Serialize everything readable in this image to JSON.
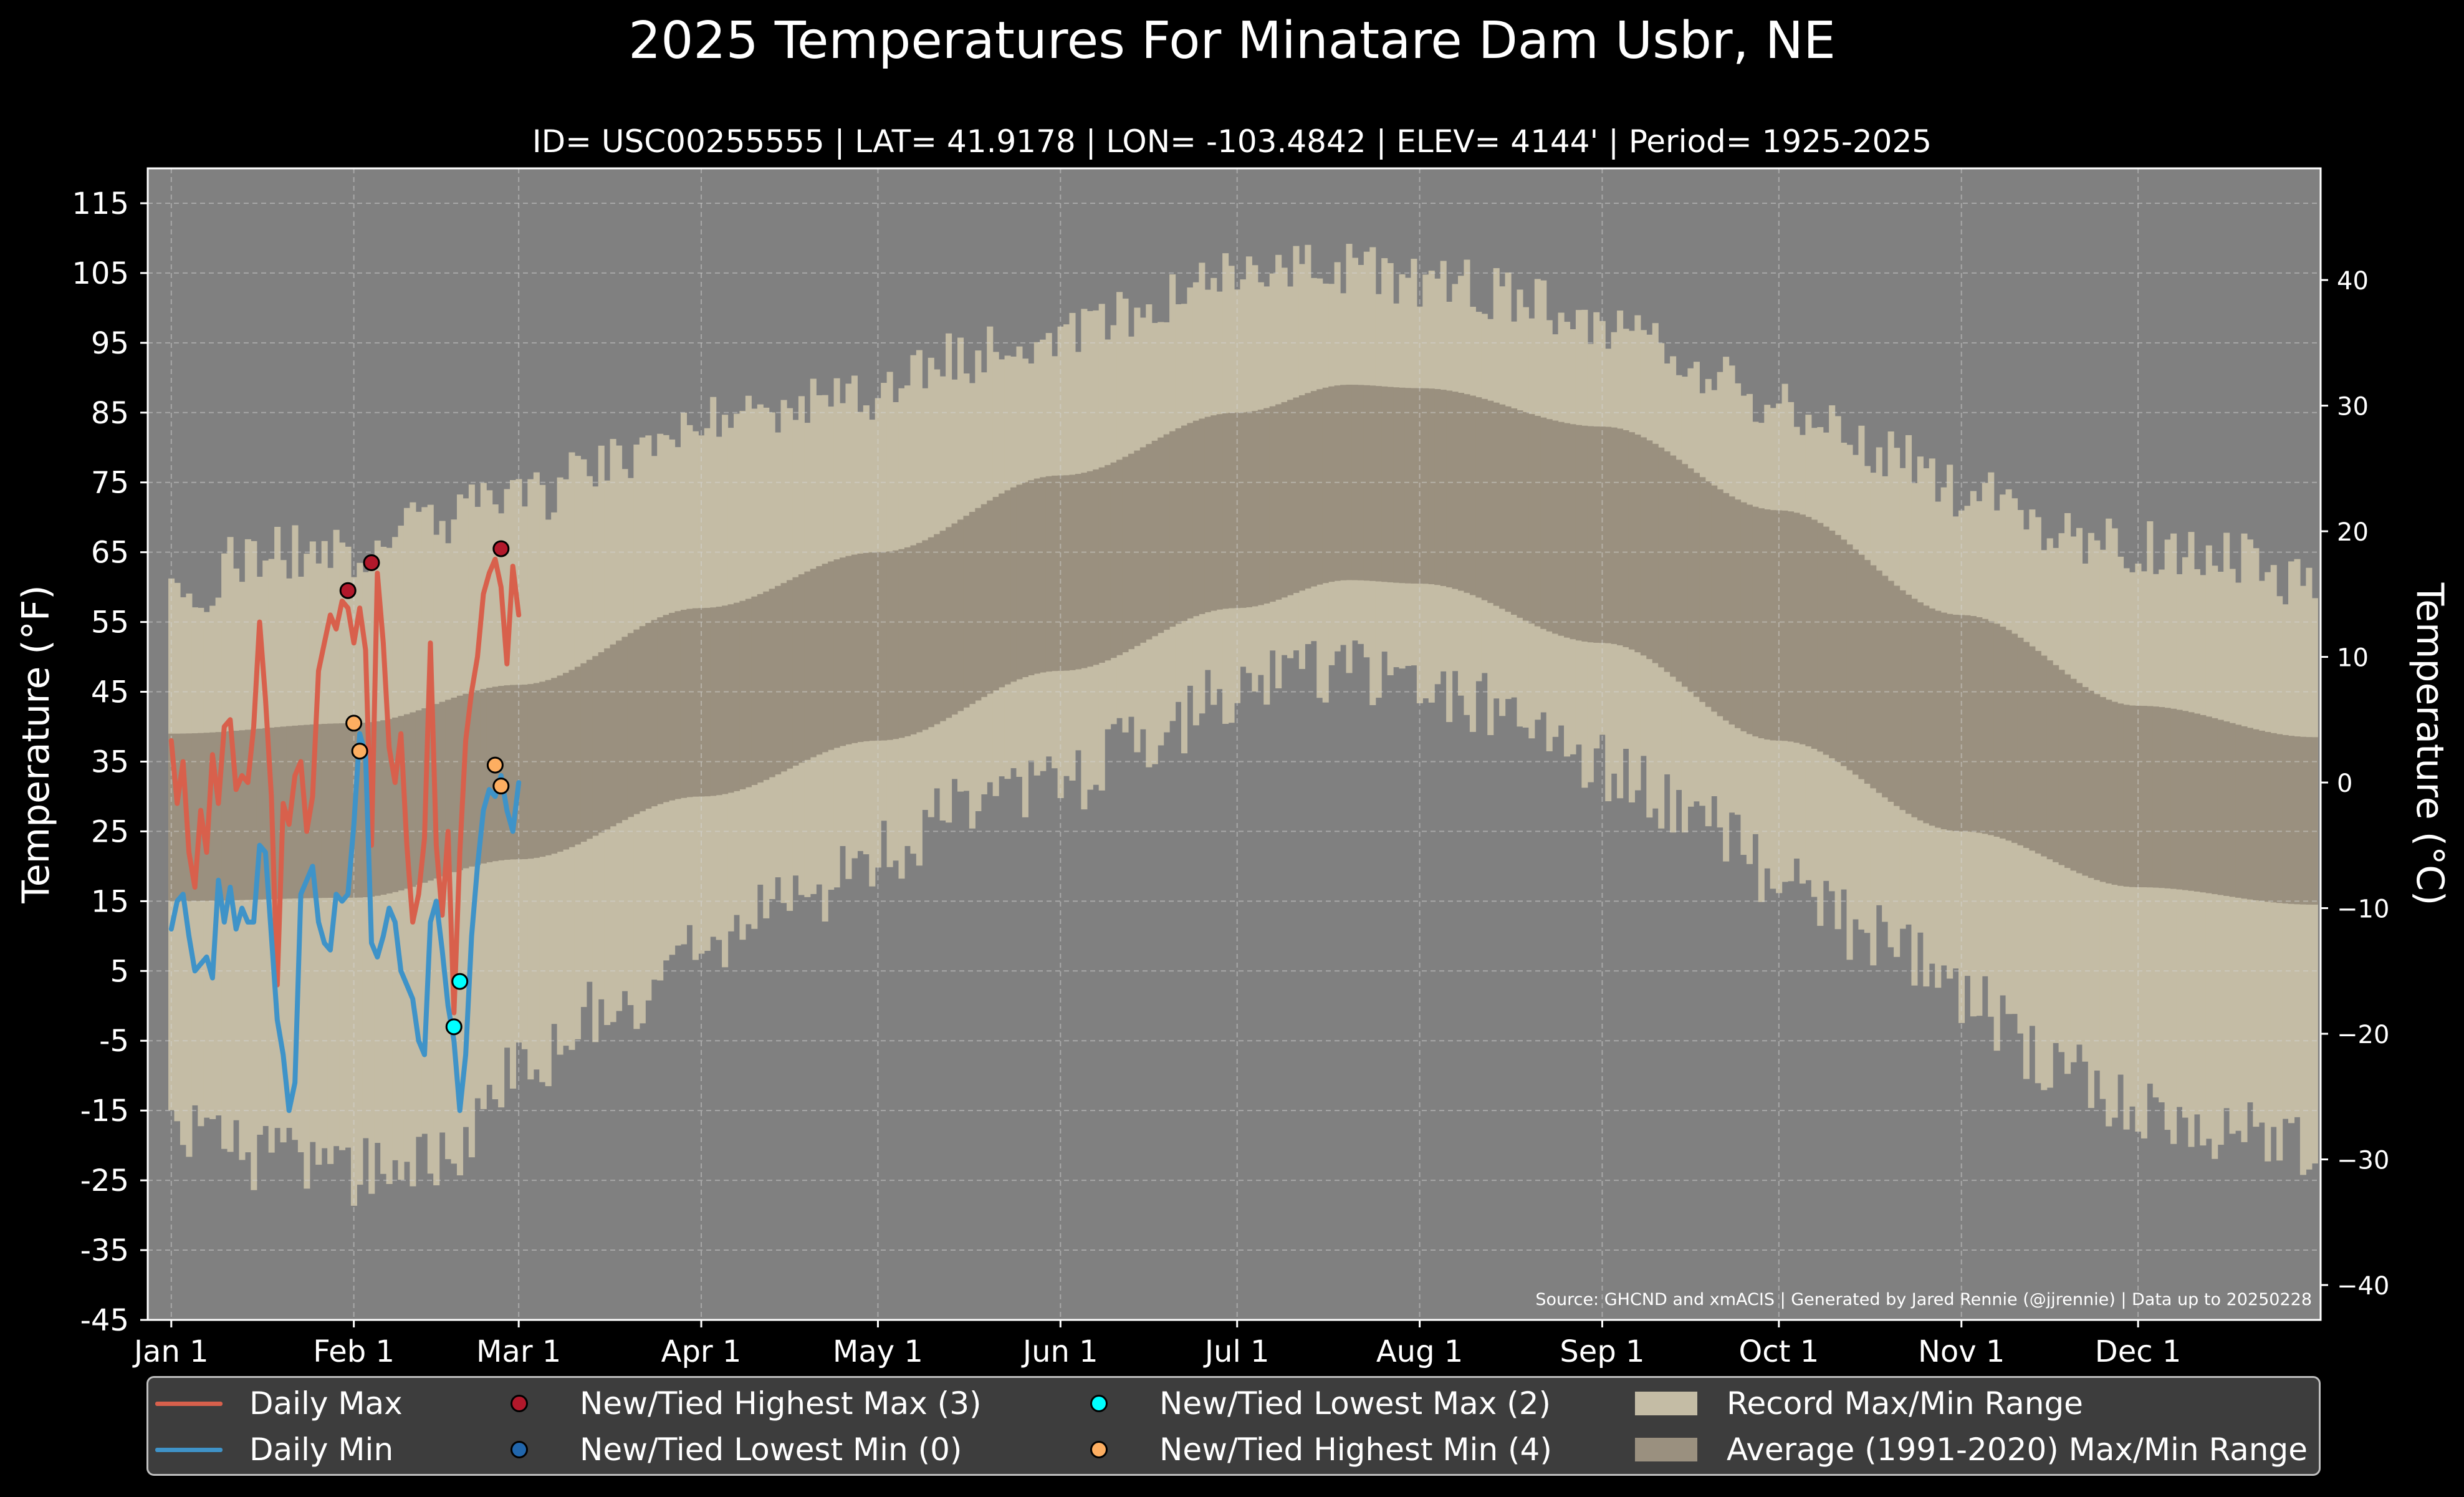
{
  "title": "2025 Temperatures For Minatare Dam Usbr, NE",
  "subtitle": "ID= USC00255555 | LAT= 41.9178 | LON= -103.4842 | ELEV= 4144' | Period= 1925-2025",
  "source": "Source: GHCND and xmACIS | Generated by Jared Rennie (@jjrennie) | Data up to 20250228",
  "colors": {
    "background": "#000000",
    "plot_bg": "#808080",
    "record_range": "#c4bca5",
    "normal_range": "#9a907f",
    "daily_max": "#d8604c",
    "daily_min": "#3f93c8",
    "highest_max": "#b2182b",
    "lowest_min": "#2166ac",
    "lowest_max": "#00ffff",
    "highest_min": "#fdae61"
  },
  "legend": {
    "daily_max": "Daily Max",
    "daily_min": "Daily Min",
    "highest_max": "New/Tied Highest Max (3)",
    "lowest_min": "New/Tied Lowest Min (0)",
    "lowest_max": "New/Tied Lowest Max (2)",
    "highest_min": "New/Tied Highest Min (4)",
    "record_range": "Record Max/Min Range",
    "normal_range": "Average (1991-2020) Max/Min Range"
  },
  "chart_data": {
    "type": "line",
    "ylabel_left": "Temperature ($^\\circ$F)",
    "ylabel_right": "Temperature ($^\\circ$C)",
    "ylim_f": [
      -45,
      120
    ],
    "y_ticks_f": [
      -45,
      -35,
      -25,
      -15,
      -5,
      5,
      15,
      25,
      35,
      45,
      55,
      65,
      75,
      85,
      95,
      105,
      115
    ],
    "y_ticks_c": [
      -40,
      -30,
      -20,
      -10,
      0,
      10,
      20,
      30,
      40
    ],
    "xlim_day": [
      -4,
      365
    ],
    "grid": true,
    "legend_placement": "bottom",
    "x_ticks": [
      {
        "day": 0,
        "label": "Jan 1"
      },
      {
        "day": 31,
        "label": "Feb 1"
      },
      {
        "day": 59,
        "label": "Mar 1"
      },
      {
        "day": 90,
        "label": "Apr 1"
      },
      {
        "day": 120,
        "label": "May 1"
      },
      {
        "day": 151,
        "label": "Jun 1"
      },
      {
        "day": 181,
        "label": "Jul 1"
      },
      {
        "day": 212,
        "label": "Aug 1"
      },
      {
        "day": 243,
        "label": "Sep 1"
      },
      {
        "day": 273,
        "label": "Oct 1"
      },
      {
        "day": 304,
        "label": "Nov 1"
      },
      {
        "day": 334,
        "label": "Dec 1"
      }
    ],
    "record_max_anchors": [
      [
        0,
        58
      ],
      [
        15,
        65
      ],
      [
        31,
        65
      ],
      [
        45,
        70
      ],
      [
        59,
        72
      ],
      [
        75,
        78
      ],
      [
        90,
        85
      ],
      [
        105,
        86
      ],
      [
        120,
        88
      ],
      [
        135,
        93
      ],
      [
        151,
        96
      ],
      [
        165,
        100
      ],
      [
        181,
        104
      ],
      [
        195,
        106
      ],
      [
        212,
        104
      ],
      [
        228,
        102
      ],
      [
        243,
        98
      ],
      [
        258,
        92
      ],
      [
        273,
        86
      ],
      [
        289,
        80
      ],
      [
        304,
        74
      ],
      [
        319,
        68
      ],
      [
        334,
        66
      ],
      [
        350,
        64
      ],
      [
        364,
        60
      ]
    ],
    "record_min_anchors": [
      [
        0,
        -18
      ],
      [
        15,
        -22
      ],
      [
        31,
        -24
      ],
      [
        45,
        -22
      ],
      [
        59,
        -10
      ],
      [
        75,
        0
      ],
      [
        90,
        8
      ],
      [
        105,
        14
      ],
      [
        120,
        22
      ],
      [
        135,
        28
      ],
      [
        151,
        32
      ],
      [
        165,
        38
      ],
      [
        181,
        45
      ],
      [
        195,
        48
      ],
      [
        212,
        46
      ],
      [
        228,
        42
      ],
      [
        243,
        34
      ],
      [
        258,
        28
      ],
      [
        273,
        18
      ],
      [
        289,
        10
      ],
      [
        304,
        2
      ],
      [
        319,
        -8
      ],
      [
        334,
        -14
      ],
      [
        350,
        -18
      ],
      [
        364,
        -20
      ]
    ],
    "normal_max_anchors": [
      [
        0,
        39
      ],
      [
        31,
        40.5
      ],
      [
        59,
        46
      ],
      [
        90,
        57
      ],
      [
        120,
        65
      ],
      [
        151,
        76
      ],
      [
        181,
        85
      ],
      [
        200,
        89
      ],
      [
        212,
        88.5
      ],
      [
        243,
        83
      ],
      [
        273,
        71
      ],
      [
        304,
        56
      ],
      [
        334,
        43
      ],
      [
        364,
        38.5
      ]
    ],
    "normal_min_anchors": [
      [
        0,
        15
      ],
      [
        31,
        15.5
      ],
      [
        59,
        21
      ],
      [
        90,
        30
      ],
      [
        120,
        38
      ],
      [
        151,
        48
      ],
      [
        181,
        57
      ],
      [
        200,
        61
      ],
      [
        212,
        60.5
      ],
      [
        243,
        52
      ],
      [
        273,
        38
      ],
      [
        304,
        25
      ],
      [
        334,
        17
      ],
      [
        364,
        14.5
      ]
    ],
    "series": [
      {
        "name": "Daily Max",
        "values": [
          38,
          29,
          35,
          22,
          17,
          28,
          22,
          36,
          29,
          40,
          41,
          31,
          33,
          32,
          40,
          55,
          44,
          30,
          3,
          29,
          26,
          33,
          35,
          25,
          30,
          48,
          52,
          56,
          54,
          58,
          57,
          52,
          57,
          51,
          23,
          62,
          52,
          37,
          32,
          39,
          23,
          12,
          16,
          24,
          52,
          23,
          13,
          25,
          -1,
          22,
          38,
          45,
          50,
          59,
          62,
          64,
          60,
          49,
          63,
          56
        ]
      },
      {
        "name": "Daily Min",
        "values": [
          11,
          15,
          16,
          10,
          5,
          6,
          7,
          4,
          18,
          12,
          17,
          11,
          14,
          12,
          12,
          23,
          22,
          10,
          -2,
          -7,
          -15,
          -11,
          16,
          18,
          20,
          12,
          9,
          8,
          16,
          15,
          16,
          26,
          39,
          36,
          9,
          7,
          10,
          14,
          12,
          5,
          3,
          1,
          -5,
          -7,
          12,
          15,
          8,
          0,
          -5,
          -15,
          -7,
          10,
          20,
          28,
          31,
          30,
          33,
          28,
          25,
          32
        ]
      }
    ],
    "records_highest_max": [
      [
        30,
        59.5
      ],
      [
        34,
        63.5
      ],
      [
        56,
        65.5
      ]
    ],
    "records_lowest_min": [],
    "records_lowest_max": [
      [
        48,
        -3
      ],
      [
        49,
        3.5
      ]
    ],
    "records_highest_min": [
      [
        31,
        40.5
      ],
      [
        32,
        36.5
      ],
      [
        55,
        34.5
      ],
      [
        56,
        31.5
      ]
    ]
  }
}
